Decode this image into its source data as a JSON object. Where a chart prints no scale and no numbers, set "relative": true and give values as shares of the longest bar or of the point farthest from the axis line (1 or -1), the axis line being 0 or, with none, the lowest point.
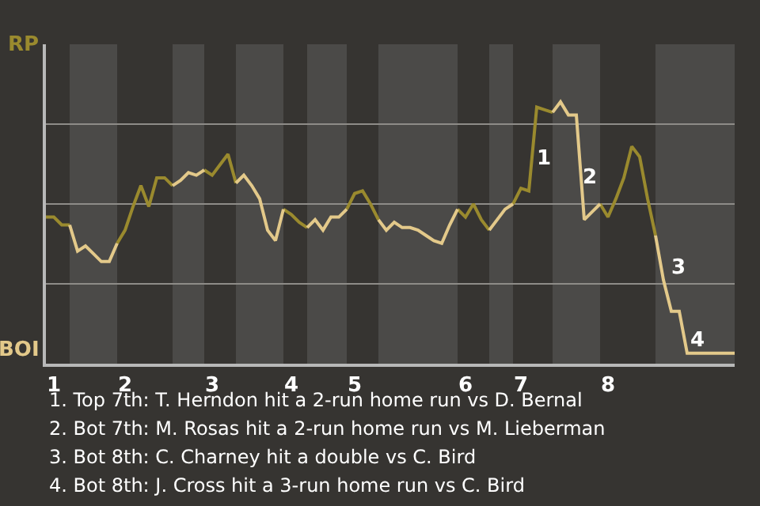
{
  "chart_data": {
    "type": "line",
    "relative": true,
    "categories": [
      null,
      "1",
      null,
      null,
      null,
      null,
      null,
      null,
      null,
      null,
      "2",
      null,
      null,
      null,
      null,
      null,
      null,
      null,
      null,
      null,
      null,
      "3",
      null,
      null,
      null,
      null,
      null,
      null,
      null,
      null,
      null,
      "4",
      null,
      null,
      null,
      null,
      null,
      null,
      null,
      "5",
      null,
      null,
      null,
      null,
      null,
      null,
      null,
      null,
      null,
      null,
      null,
      null,
      null,
      "6",
      null,
      null,
      null,
      null,
      null,
      null,
      "7",
      null,
      null,
      null,
      null,
      null,
      null,
      null,
      null,
      null,
      null,
      "8",
      null,
      null,
      null,
      null,
      null,
      null,
      null,
      null,
      null,
      null,
      null,
      null,
      null,
      null,
      null,
      null
    ],
    "grid": "y",
    "marker": "none",
    "line_style": "solid",
    "series": [
      {
        "color": "#9a8a2e",
        "values": [
          0.56,
          0.56,
          0.53,
          0.53,
          null,
          null,
          null,
          null,
          null,
          0.46,
          0.51,
          0.6,
          0.68,
          0.6,
          0.71,
          0.71,
          0.68,
          null,
          null,
          null,
          0.74,
          0.72,
          0.76,
          0.8,
          0.69,
          null,
          null,
          null,
          null,
          null,
          0.59,
          0.57,
          0.54,
          0.52,
          null,
          null,
          null,
          null,
          0.59,
          0.65,
          0.66,
          0.61,
          0.55,
          null,
          null,
          null,
          null,
          null,
          null,
          null,
          null,
          null,
          0.59,
          0.56,
          0.61,
          0.55,
          0.51,
          null,
          null,
          0.61,
          0.67,
          0.66,
          0.98,
          0.97,
          0.96,
          null,
          null,
          null,
          null,
          null,
          0.61,
          0.56,
          0.63,
          0.71,
          0.83,
          0.79,
          0.63,
          0.49,
          null,
          null,
          null,
          null,
          null,
          null,
          null,
          null,
          null,
          null
        ]
      },
      {
        "color": "#e3c98a",
        "values": [
          null,
          null,
          null,
          0.53,
          0.43,
          0.45,
          0.42,
          0.39,
          0.39,
          0.46,
          null,
          null,
          null,
          null,
          null,
          null,
          0.68,
          0.7,
          0.73,
          0.72,
          0.74,
          null,
          null,
          null,
          0.69,
          0.72,
          0.68,
          0.63,
          0.51,
          0.47,
          0.59,
          null,
          null,
          0.52,
          0.55,
          0.51,
          0.56,
          0.56,
          0.59,
          null,
          null,
          null,
          0.55,
          0.51,
          0.54,
          0.52,
          0.52,
          0.51,
          0.49,
          0.47,
          0.46,
          0.53,
          0.59,
          null,
          null,
          null,
          0.51,
          0.55,
          0.59,
          0.61,
          null,
          null,
          null,
          null,
          0.96,
          1,
          0.95,
          0.95,
          0.55,
          0.58,
          0.61,
          null,
          null,
          null,
          null,
          null,
          null,
          0.49,
          0.32,
          0.2,
          0.2,
          0.04,
          0.04,
          0.04,
          0.04,
          0.04,
          0.04,
          0.04
        ]
      }
    ],
    "annotations": [
      "RP",
      "BOI",
      "1",
      "2",
      "3",
      "4",
      "1. Top 7th: T. Herndon hit a 2-run home run vs D. Bernal",
      "2. Bot 7th: M. Rosas hit a 2-run home run vs M. Lieberman",
      "3. Bot 8th: C. Charney hit a double vs C. Bird",
      "4. Bot 8th: J. Cross hit a 3-run home run vs C. Bird"
    ]
  }
}
